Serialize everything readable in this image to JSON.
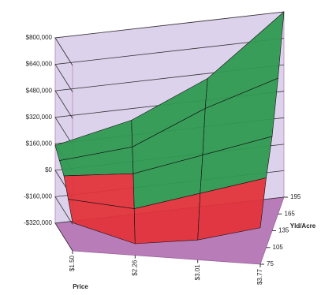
{
  "chart_data": {
    "type": "surface",
    "categories": [
      "$1.50",
      "$2.26",
      "$3.01",
      "$3.77"
    ],
    "depth_categories": [
      75,
      105,
      135,
      165,
      195
    ],
    "values": [
      [
        -150000,
        -250000,
        -200000,
        -100000
      ],
      [
        -50000,
        -100000,
        0,
        100000
      ],
      [
        50000,
        50000,
        150000,
        250000
      ],
      [
        100000,
        150000,
        350000,
        500000
      ],
      [
        150000,
        250000,
        450000,
        800000
      ]
    ],
    "zlim": [
      -320000,
      800000
    ],
    "zticks": [
      {
        "value": -320000,
        "label": "-$320,000"
      },
      {
        "value": -160000,
        "label": "-$160,000"
      },
      {
        "value": 0,
        "label": "$0"
      },
      {
        "value": 160000,
        "label": "$160,000"
      },
      {
        "value": 320000,
        "label": "$320,000"
      },
      {
        "value": 480000,
        "label": "$480,000"
      },
      {
        "value": 640000,
        "label": "$640,000"
      },
      {
        "value": 800000,
        "label": "$800,000"
      }
    ],
    "xlabel": "Price",
    "depth_label": "Yld/Acre",
    "positive_color": "#2f9a52",
    "negative_color": "#e2343c",
    "wall_color": "#dcd2ec",
    "floor_color": "#b87db9",
    "grid": true
  }
}
